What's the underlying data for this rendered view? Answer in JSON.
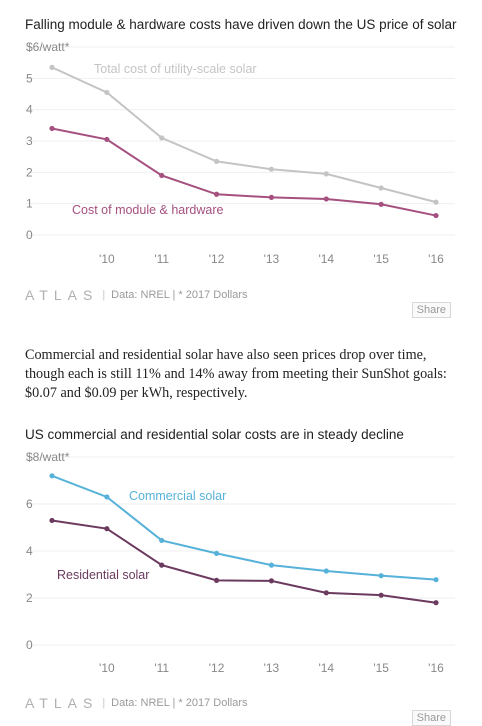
{
  "chart_data": [
    {
      "type": "line",
      "title": "Falling module & hardware costs have driven down the US price of solar",
      "y_unit_label": "$6/watt*",
      "ylim": [
        0,
        6
      ],
      "y_ticks": [
        "$6/watt*",
        "5",
        "4",
        "3",
        "2",
        "1",
        "0"
      ],
      "x_ticks": [
        "'10",
        "'11",
        "'12",
        "'13",
        "'14",
        "'15",
        "'16"
      ],
      "x": [
        2009,
        2010,
        2011,
        2012,
        2013,
        2014,
        2015,
        2016
      ],
      "grid": true,
      "series": [
        {
          "name": "Total cost of utility-scale solar",
          "color": "#c4c4c4",
          "values": [
            5.35,
            4.55,
            3.1,
            2.35,
            2.1,
            1.95,
            1.5,
            1.05
          ]
        },
        {
          "name": "Cost of module & hardware",
          "color": "#a5507f",
          "values": [
            3.4,
            3.05,
            1.9,
            1.3,
            1.2,
            1.15,
            0.98,
            0.62
          ]
        }
      ]
    },
    {
      "type": "line",
      "title": "US commercial and residential solar costs are in steady decline",
      "y_unit_label": "$8/watt*",
      "ylim": [
        0,
        8
      ],
      "y_ticks": [
        "$8/watt*",
        "6",
        "4",
        "2",
        "0"
      ],
      "x_ticks": [
        "'10",
        "'11",
        "'12",
        "'13",
        "'14",
        "'15",
        "'16"
      ],
      "x": [
        2009,
        2010,
        2011,
        2012,
        2013,
        2014,
        2015,
        2016
      ],
      "grid": true,
      "series": [
        {
          "name": "Commercial solar",
          "color": "#56b2d9",
          "values": [
            7.2,
            6.3,
            4.45,
            3.9,
            3.4,
            3.15,
            2.95,
            2.78
          ]
        },
        {
          "name": "Residential solar",
          "color": "#6b3a5e",
          "values": [
            5.3,
            4.95,
            3.4,
            2.75,
            2.73,
            2.22,
            2.12,
            1.8
          ]
        }
      ]
    }
  ],
  "footer": {
    "logo": "ATLAS",
    "source": "Data: NREL | * 2017 Dollars",
    "share_label": "Share"
  },
  "paragraph": "Commercial and residential solar have also seen prices drop over time, though each is still 11% and 14% away from meeting their SunShot goals: $0.07 and $0.09 per kWh, respectively."
}
